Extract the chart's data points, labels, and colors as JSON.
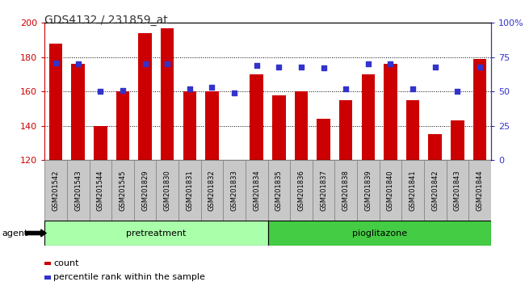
{
  "title": "GDS4132 / 231859_at",
  "samples": [
    "GSM201542",
    "GSM201543",
    "GSM201544",
    "GSM201545",
    "GSM201829",
    "GSM201830",
    "GSM201831",
    "GSM201832",
    "GSM201833",
    "GSM201834",
    "GSM201835",
    "GSM201836",
    "GSM201837",
    "GSM201838",
    "GSM201839",
    "GSM201840",
    "GSM201841",
    "GSM201842",
    "GSM201843",
    "GSM201844"
  ],
  "counts": [
    188,
    176,
    140,
    160,
    194,
    197,
    160,
    160,
    120,
    170,
    158,
    160,
    144,
    155,
    170,
    176,
    155,
    135,
    143,
    179
  ],
  "percentiles": [
    71,
    70,
    50,
    51,
    70,
    70,
    52,
    53,
    49,
    69,
    68,
    68,
    67,
    52,
    70,
    70,
    52,
    68,
    50,
    68
  ],
  "pretreatment_count": 10,
  "pioglitazone_count": 10,
  "ylim_left": [
    120,
    200
  ],
  "ylim_right": [
    0,
    100
  ],
  "yticks_left": [
    120,
    140,
    160,
    180,
    200
  ],
  "yticks_right": [
    0,
    25,
    50,
    75,
    100
  ],
  "ytick_labels_right": [
    "0",
    "25",
    "50",
    "75",
    "100%"
  ],
  "bar_color": "#cc0000",
  "dot_color": "#3333cc",
  "cell_bg_color": "#c8c8c8",
  "cell_border_color": "#888888",
  "pretreatment_color": "#aaffaa",
  "pioglitazone_color": "#44cc44",
  "agent_label": "agent",
  "pretreatment_label": "pretreatment",
  "pioglitazone_label": "pioglitazone",
  "legend_count_label": "count",
  "legend_pct_label": "percentile rank within the sample",
  "title_color": "#333333",
  "left_tick_color": "#cc0000",
  "right_tick_color": "#3333cc"
}
